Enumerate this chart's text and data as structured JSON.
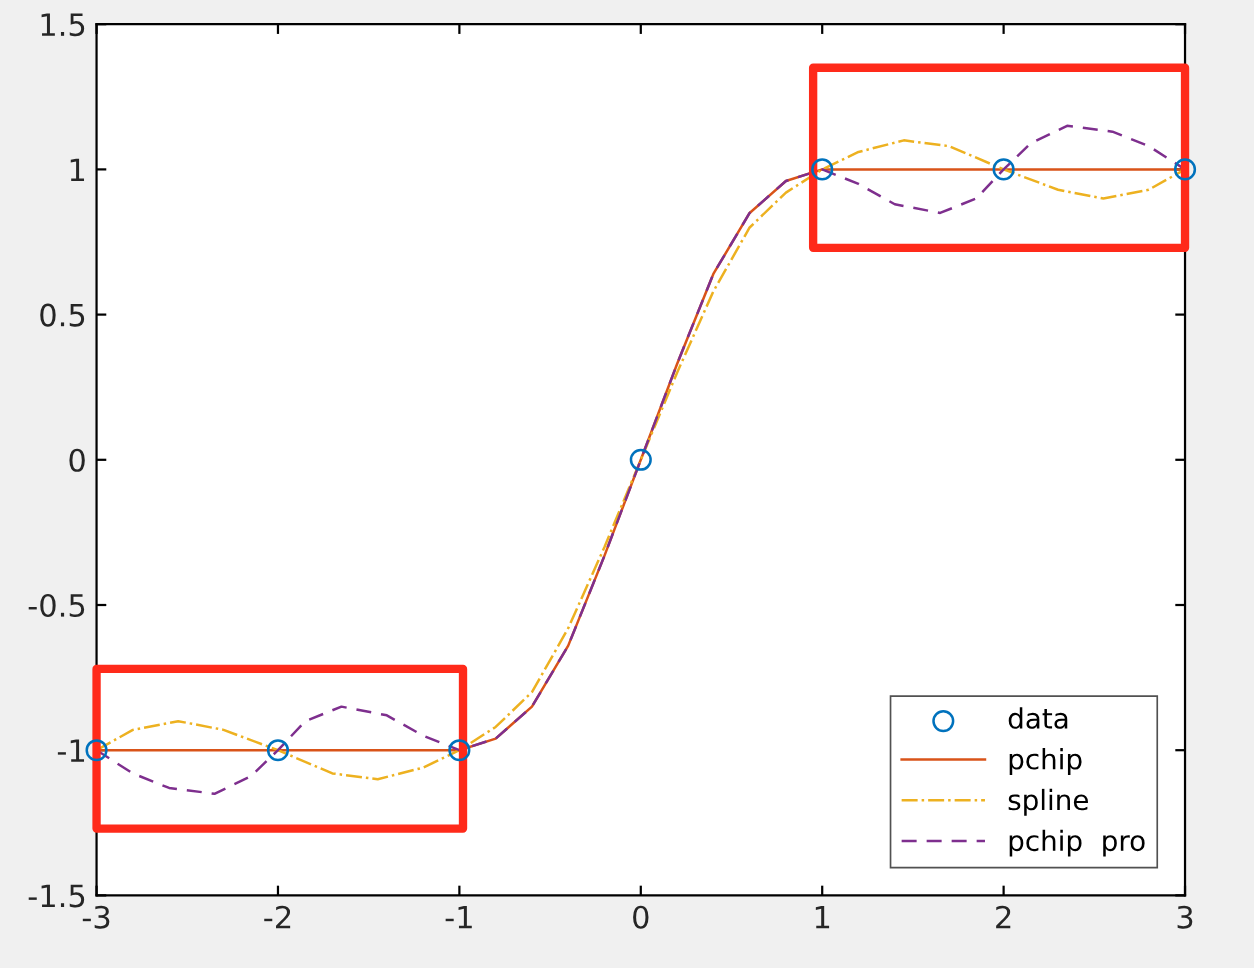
{
  "chart_data": {
    "type": "line",
    "xlim": [
      -3,
      3
    ],
    "ylim": [
      -1.5,
      1.5
    ],
    "xticks": [
      -3,
      -2,
      -1,
      0,
      1,
      2,
      3
    ],
    "yticks": [
      -1.5,
      -1,
      -0.5,
      0,
      0.5,
      1,
      1.5
    ],
    "grid": false,
    "legend": "bottom right",
    "series": [
      {
        "name": "data",
        "type": "scatter",
        "marker": "circle",
        "color": "#0072bd",
        "x": [
          -3,
          -2,
          -1,
          0,
          1,
          2,
          3
        ],
        "values": [
          -1,
          -1,
          -1,
          0,
          1,
          1,
          1
        ]
      },
      {
        "name": "pchip",
        "line_style": "solid",
        "color": "#d95319",
        "x": [
          -3,
          -2,
          -1,
          -0.8,
          -0.6,
          -0.4,
          -0.2,
          0,
          0.2,
          0.4,
          0.6,
          0.8,
          1,
          2,
          3
        ],
        "values": [
          -1,
          -1,
          -1,
          -0.96,
          -0.85,
          -0.64,
          -0.33,
          0,
          0.33,
          0.64,
          0.85,
          0.96,
          1,
          1,
          1
        ]
      },
      {
        "name": "spline",
        "line_style": "dashdot",
        "color": "#edb120",
        "x": [
          -3,
          -2.8,
          -2.55,
          -2.3,
          -2,
          -1.7,
          -1.45,
          -1.2,
          -1,
          -0.8,
          -0.6,
          -0.4,
          -0.2,
          0,
          0.2,
          0.4,
          0.6,
          0.8,
          1,
          1.2,
          1.45,
          1.7,
          2,
          2.3,
          2.55,
          2.8,
          3
        ],
        "values": [
          -1,
          -0.93,
          -0.9,
          -0.93,
          -1,
          -1.08,
          -1.1,
          -1.06,
          -1,
          -0.92,
          -0.8,
          -0.58,
          -0.3,
          0,
          0.3,
          0.58,
          0.8,
          0.92,
          1,
          1.06,
          1.1,
          1.08,
          1,
          0.93,
          0.9,
          0.93,
          1
        ]
      },
      {
        "name": "pchip  pro",
        "line_style": "dashed",
        "color": "#7e2f8e",
        "x": [
          -3,
          -2.8,
          -2.6,
          -2.35,
          -2.15,
          -2,
          -1.85,
          -1.65,
          -1.4,
          -1.2,
          -1,
          -0.8,
          -0.6,
          -0.4,
          -0.2,
          0,
          0.2,
          0.4,
          0.6,
          0.8,
          1,
          1.2,
          1.4,
          1.65,
          1.85,
          2,
          2.15,
          2.35,
          2.6,
          2.8,
          3
        ],
        "values": [
          -1,
          -1.08,
          -1.13,
          -1.15,
          -1.09,
          -1,
          -0.9,
          -0.85,
          -0.88,
          -0.95,
          -1,
          -0.96,
          -0.85,
          -0.64,
          -0.33,
          0,
          0.33,
          0.64,
          0.85,
          0.96,
          1,
          0.95,
          0.88,
          0.85,
          0.9,
          1,
          1.09,
          1.15,
          1.13,
          1.08,
          1
        ]
      }
    ]
  }
}
